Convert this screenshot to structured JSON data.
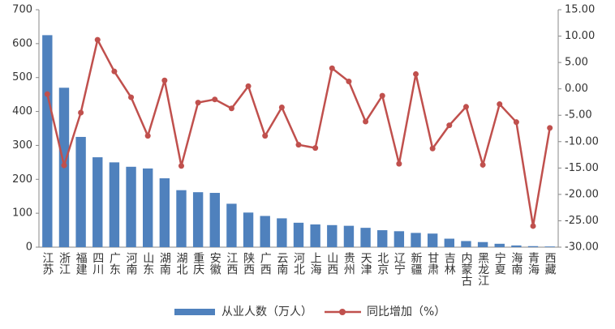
{
  "chart_data": {
    "type": "bar-line",
    "categories": [
      "江苏",
      "浙江",
      "福建",
      "四川",
      "广东",
      "河南",
      "山东",
      "湖南",
      "湖北",
      "重庆",
      "安徽",
      "江西",
      "陕西",
      "广西",
      "云南",
      "河北",
      "上海",
      "山西",
      "贵州",
      "天津",
      "北京",
      "辽宁",
      "新疆",
      "甘肃",
      "吉林",
      "内蒙古",
      "黑龙江",
      "宁夏",
      "海南",
      "青海",
      "西藏"
    ],
    "series": [
      {
        "name": "从业人数（万人）",
        "color": "#4f81bd",
        "type": "bar",
        "values": [
          625,
          470,
          325,
          265,
          250,
          237,
          232,
          203,
          168,
          162,
          160,
          128,
          102,
          92,
          85,
          72,
          67,
          65,
          63,
          57,
          50,
          47,
          42,
          40,
          25,
          18,
          15,
          10,
          5,
          3,
          2
        ]
      },
      {
        "name": "同比增加（%）",
        "color": "#c0504d",
        "type": "line",
        "axis": "y2",
        "values": [
          -1,
          -14.5,
          -4.5,
          9.3,
          3.3,
          -1.6,
          -8.9,
          1.6,
          -14.6,
          -2.6,
          -2,
          -3.7,
          0.5,
          -8.9,
          -3.5,
          -10.6,
          -11.2,
          3.9,
          1.4,
          -6.2,
          -1.3,
          -14.2,
          2.8,
          -11.3,
          -6.9,
          -3.4,
          -14.4,
          -2.9,
          -6.3,
          -26,
          -7.4
        ]
      }
    ],
    "ylim": [
      0,
      700
    ],
    "yticks": [
      0,
      100,
      200,
      300,
      400,
      500,
      600,
      700
    ],
    "y2lim": [
      -30,
      15
    ],
    "y2ticks": [
      {
        "value": 15,
        "label": "15.00"
      },
      {
        "value": 10,
        "label": "10.00"
      },
      {
        "value": 5,
        "label": "5.00"
      },
      {
        "value": 0,
        "label": "0.00"
      },
      {
        "value": -5,
        "label": "-5.00"
      },
      {
        "value": -10,
        "label": "-10.00"
      },
      {
        "value": -15,
        "label": "-15.00"
      },
      {
        "value": -20,
        "label": "-20.00"
      },
      {
        "value": -25,
        "label": "-25.00"
      },
      {
        "value": -30,
        "label": "-30.00"
      }
    ],
    "legend": "bottom"
  }
}
